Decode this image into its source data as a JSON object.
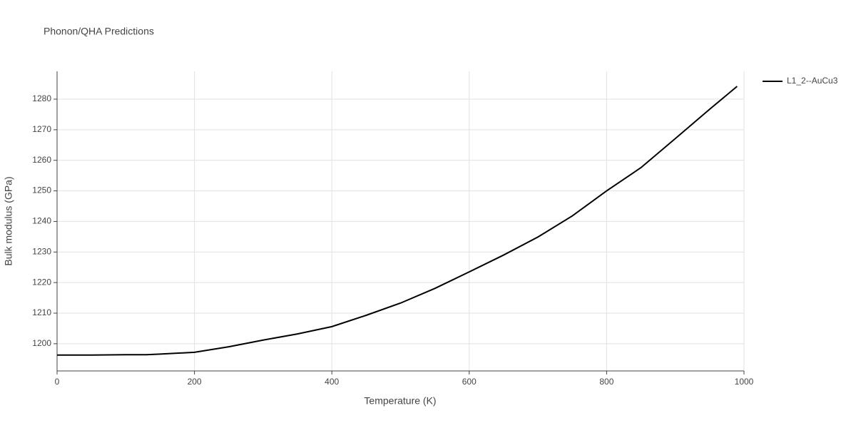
{
  "chart_data": {
    "type": "line",
    "title": "Phonon/QHA Predictions",
    "x_label": "Temperature (K)",
    "y_label": "Bulk modulus (GPa)",
    "x": [
      0,
      50,
      100,
      130,
      150,
      200,
      250,
      300,
      350,
      400,
      450,
      500,
      550,
      600,
      650,
      700,
      750,
      800,
      850,
      900,
      950,
      990
    ],
    "series": [
      {
        "name": "L1_2--AuCu3",
        "color": "#000000",
        "values": [
          1196.3,
          1196.3,
          1196.4,
          1196.4,
          1196.6,
          1197.2,
          1199.0,
          1201.2,
          1203.2,
          1205.6,
          1209.3,
          1213.3,
          1218.1,
          1223.5,
          1229.0,
          1234.9,
          1241.8,
          1250.0,
          1257.6,
          1267.1,
          1276.7,
          1284.2
        ]
      }
    ],
    "xlim": [
      0,
      1000
    ],
    "xticks": [
      0,
      200,
      400,
      600,
      800,
      1000
    ],
    "ylim": [
      1191.1,
      1289.1
    ],
    "yticks": [
      1200,
      1210,
      1220,
      1230,
      1240,
      1250,
      1260,
      1270,
      1280
    ],
    "grid": true,
    "legend": "right"
  }
}
